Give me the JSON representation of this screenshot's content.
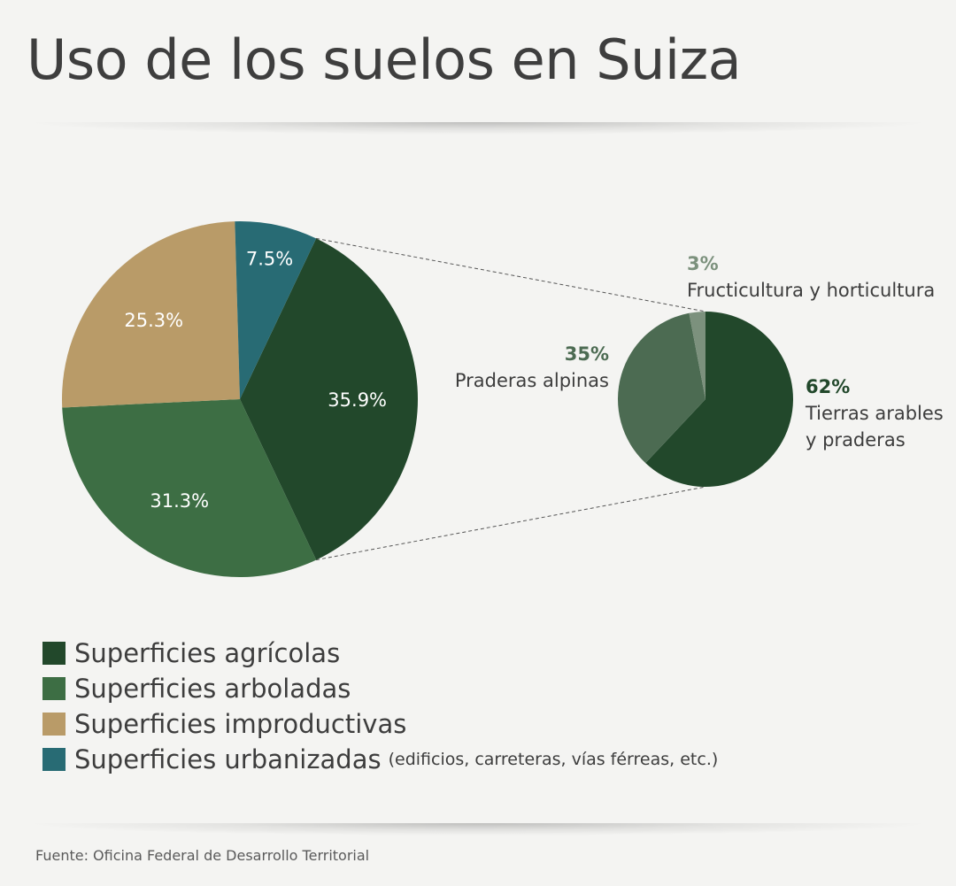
{
  "title": "Uso de los suelos en Suiza",
  "source": "Fuente: Oficina Federal de Desarrollo Territorial",
  "chart_data": [
    {
      "type": "pie",
      "id": "main",
      "categories": [
        "Superficies agrícolas",
        "Superficies arboladas",
        "Superficies improductivas",
        "Superficies urbanizadas"
      ],
      "values": [
        35.9,
        31.3,
        25.3,
        7.5
      ],
      "labels": [
        "35.9%",
        "31.3%",
        "25.3%",
        "7.5%"
      ],
      "colors": [
        "#22482b",
        "#3d6e44",
        "#b99b68",
        "#286b74"
      ],
      "legend": {
        "placement": "bottom-left",
        "items": [
          {
            "label": "Superficies agrícolas",
            "note": "",
            "color": "#22482b"
          },
          {
            "label": "Superficies arboladas",
            "note": "",
            "color": "#3d6e44"
          },
          {
            "label": "Superficies improductivas",
            "note": "",
            "color": "#b99b68"
          },
          {
            "label": "Superficies urbanizadas",
            "note": "(edificios, carreteras, vías férreas, etc.)",
            "color": "#286b74"
          }
        ]
      }
    },
    {
      "type": "pie",
      "id": "breakdown",
      "parent_category": "Superficies agrícolas",
      "categories": [
        "Tierras arables y praderas",
        "Praderas alpinas",
        "Fructicultura y horticultura"
      ],
      "values": [
        62,
        35,
        3
      ],
      "labels": [
        {
          "pct": "62%",
          "lines": [
            "Tierras arables",
            "y praderas"
          ]
        },
        {
          "pct": "35%",
          "lines": [
            "Praderas alpinas"
          ]
        },
        {
          "pct": "3%",
          "lines": [
            "Fructicultura y horticultura"
          ]
        }
      ],
      "colors": [
        "#22482b",
        "#4c6b52",
        "#7c917d"
      ],
      "pct_colors": [
        "#22482b",
        "#4c6b52",
        "#7c917d"
      ]
    }
  ]
}
